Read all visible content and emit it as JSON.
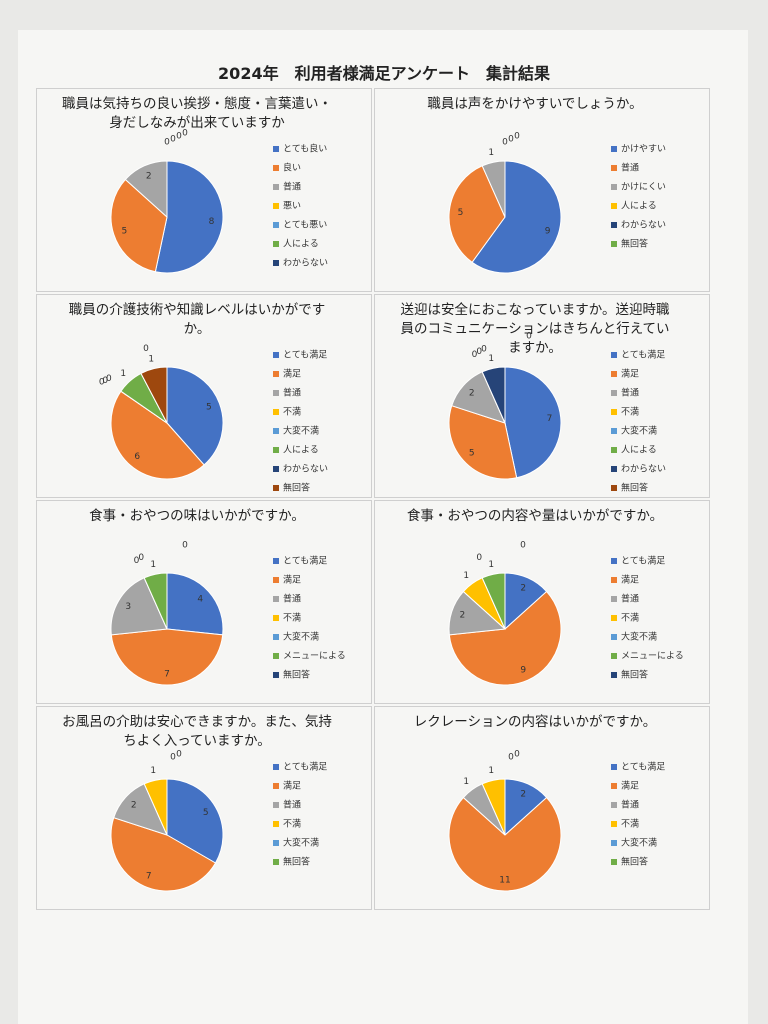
{
  "title": "2024年　利用者様満足アンケート　集計結果",
  "chart_data": [
    {
      "type": "pie",
      "title": "職員は気持ちの良い挨拶・態度・言葉遣い・身だしなみが出来ていますか",
      "categories": [
        "とても良い",
        "良い",
        "普通",
        "悪い",
        "とても悪い",
        "人による",
        "わからない"
      ],
      "values": [
        8,
        5,
        2,
        0,
        0,
        0,
        0
      ],
      "colors": [
        "#4472c4",
        "#ed7d31",
        "#a5a5a5",
        "#ffc000",
        "#5b9bd5",
        "#70ad47",
        "#264478"
      ]
    },
    {
      "type": "pie",
      "title": "職員は声をかけやすいでしょうか。",
      "categories": [
        "かけやすい",
        "普通",
        "かけにくい",
        "人による",
        "わからない",
        "無回答"
      ],
      "values": [
        9,
        5,
        1,
        0,
        0,
        0
      ],
      "colors": [
        "#4472c4",
        "#ed7d31",
        "#a5a5a5",
        "#ffc000",
        "#264478",
        "#70ad47"
      ]
    },
    {
      "type": "pie",
      "title": "職員の介護技術や知識レベルはいかがですか。",
      "categories": [
        "とても満足",
        "満足",
        "普通",
        "不満",
        "大変不満",
        "人による",
        "わからない",
        "無回答"
      ],
      "values": [
        5,
        6,
        0,
        0,
        0,
        1,
        0,
        1
      ],
      "colors": [
        "#4472c4",
        "#ed7d31",
        "#a5a5a5",
        "#ffc000",
        "#5b9bd5",
        "#70ad47",
        "#264478",
        "#9e480e"
      ]
    },
    {
      "type": "pie",
      "title": "送迎は安全におこなっていますか。送迎時職員のコミュニケーションはきちんと行えていますか。",
      "categories": [
        "とても満足",
        "満足",
        "普通",
        "不満",
        "大変不満",
        "人による",
        "わからない",
        "無回答"
      ],
      "values": [
        7,
        5,
        2,
        0,
        0,
        0,
        1,
        0
      ],
      "colors": [
        "#4472c4",
        "#ed7d31",
        "#a5a5a5",
        "#ffc000",
        "#5b9bd5",
        "#70ad47",
        "#264478",
        "#9e480e"
      ]
    },
    {
      "type": "pie",
      "title": "食事・おやつの味はいかがですか。",
      "categories": [
        "とても満足",
        "満足",
        "普通",
        "不満",
        "大変不満",
        "メニューによる",
        "無回答"
      ],
      "values": [
        4,
        7,
        3,
        0,
        0,
        1,
        0
      ],
      "colors": [
        "#4472c4",
        "#ed7d31",
        "#a5a5a5",
        "#ffc000",
        "#5b9bd5",
        "#70ad47",
        "#264478"
      ]
    },
    {
      "type": "pie",
      "title": "食事・おやつの内容や量はいかがですか。",
      "categories": [
        "とても満足",
        "満足",
        "普通",
        "不満",
        "大変不満",
        "メニューによる",
        "無回答"
      ],
      "values": [
        2,
        9,
        2,
        1,
        0,
        1,
        0
      ],
      "colors": [
        "#4472c4",
        "#ed7d31",
        "#a5a5a5",
        "#ffc000",
        "#5b9bd5",
        "#70ad47",
        "#264478"
      ]
    },
    {
      "type": "pie",
      "title": "お風呂の介助は安心できますか。また、気持ちよく入っていますか。",
      "categories": [
        "とても満足",
        "満足",
        "普通",
        "不満",
        "大変不満",
        "無回答"
      ],
      "values": [
        5,
        7,
        2,
        1,
        0,
        0
      ],
      "colors": [
        "#4472c4",
        "#ed7d31",
        "#a5a5a5",
        "#ffc000",
        "#5b9bd5",
        "#70ad47"
      ]
    },
    {
      "type": "pie",
      "title": "レクレーションの内容はいかがですか。",
      "categories": [
        "とても満足",
        "満足",
        "普通",
        "不満",
        "大変不満",
        "無回答"
      ],
      "values": [
        2,
        11,
        1,
        1,
        0,
        0
      ],
      "colors": [
        "#4472c4",
        "#ed7d31",
        "#a5a5a5",
        "#ffc000",
        "#5b9bd5",
        "#70ad47"
      ]
    }
  ]
}
